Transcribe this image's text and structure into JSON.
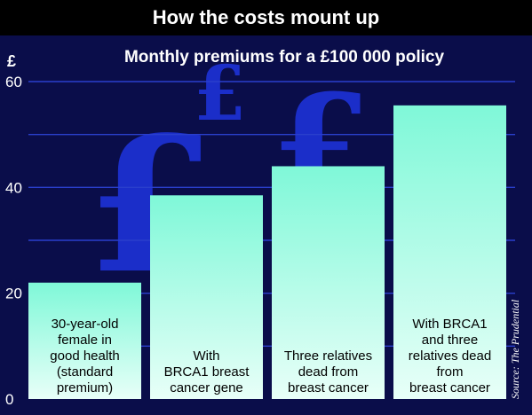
{
  "header": {
    "title": "How the costs mount up"
  },
  "chart_data": {
    "type": "bar",
    "title": "Monthly premiums for a £100 000 policy",
    "ylabel": "£",
    "xlabel": "",
    "ylim": [
      0,
      60
    ],
    "yticks": [
      "0",
      "20",
      "40",
      "60"
    ],
    "grid": true,
    "categories": [
      [
        "30-year-old",
        "female in",
        "good health",
        "(standard",
        "premium)"
      ],
      [
        "With",
        "BRCA1 breast",
        "cancer gene"
      ],
      [
        "Three relatives",
        "dead from",
        "breast cancer"
      ],
      [
        "With BRCA1",
        "and three",
        "relatives dead",
        "from",
        "breast cancer"
      ]
    ],
    "values": [
      22,
      38.5,
      44,
      55.5
    ],
    "bar_color": "#9affd9",
    "background_color": "#0a0d4a",
    "grid_color": "#2a3fcc",
    "source": "Source: The Prudential"
  }
}
